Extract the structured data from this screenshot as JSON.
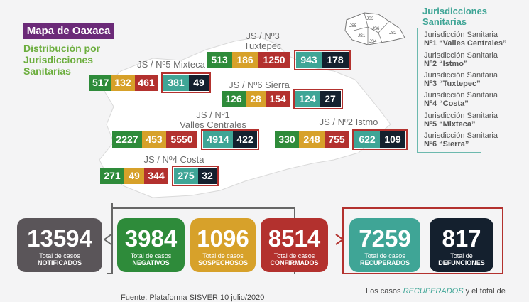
{
  "title": "Mapa de Oaxaca",
  "subtitle": "Distribución por Jurisdicciones Sanitarias",
  "legend": {
    "title": "Jurisdicciones Sanitarias",
    "items": [
      {
        "prefix": "Jurisdicción Sanitaria",
        "name": "Nº1 “Valles Centrales”"
      },
      {
        "prefix": "Jurisdicción Sanitaria",
        "name": "Nº2 “Istmo”"
      },
      {
        "prefix": "Jurisdicción Sanitaria",
        "name": "Nº3 “Tuxtepec”"
      },
      {
        "prefix": "Jurisdicción Sanitaria",
        "name": "Nº4 “Costa”"
      },
      {
        "prefix": "Jurisdicción Sanitaria",
        "name": "Nº5 “Mixteca”"
      },
      {
        "prefix": "Jurisdicción Sanitaria",
        "name": "Nº6 “Sierra”"
      }
    ],
    "mini_map_labels": [
      "JS3",
      "JS5",
      "JS1",
      "JS6",
      "JS2",
      "JS4"
    ]
  },
  "colors": {
    "negativos": "#2e8b3a",
    "sospechosos": "#d7a12a",
    "confirmados": "#b3312e",
    "recuperados": "#3fa596",
    "defunciones": "#14202e",
    "notificados": "#5a5559",
    "title_bg": "#6b2a78",
    "accent_green": "#6cae3e"
  },
  "chart_data": {
    "type": "table",
    "columns": [
      "Negativos",
      "Sospechosos",
      "Confirmados",
      "Recuperados",
      "Defunciones"
    ],
    "regions": [
      {
        "label_top": "JS / Nº3",
        "label_bottom": "Tuxtepec",
        "values": [
          513,
          186,
          1250,
          943,
          178
        ]
      },
      {
        "label_top": "JS / Nº5 Mixteca",
        "label_bottom": "",
        "values": [
          517,
          132,
          461,
          381,
          49
        ]
      },
      {
        "label_top": "JS / Nº6 Sierra",
        "label_bottom": "",
        "values": [
          126,
          28,
          154,
          124,
          27
        ]
      },
      {
        "label_top": "JS / Nº1",
        "label_bottom": "Valles Centrales",
        "values": [
          2227,
          453,
          5550,
          4914,
          422
        ]
      },
      {
        "label_top": "JS / Nº2 Istmo",
        "label_bottom": "",
        "values": [
          330,
          248,
          755,
          622,
          109
        ]
      },
      {
        "label_top": "JS / Nº4 Costa",
        "label_bottom": "",
        "values": [
          271,
          49,
          344,
          275,
          32
        ]
      }
    ],
    "totals": [
      {
        "value": "13594",
        "line1": "Total de casos",
        "line2": "NOTIFICADOS"
      },
      {
        "value": "3984",
        "line1": "Total de casos",
        "line2": "NEGATIVOS"
      },
      {
        "value": "1096",
        "line1": "Total de casos",
        "line2": "SOSPECHOSOS"
      },
      {
        "value": "8514",
        "line1": "Total de casos",
        "line2": "CONFIRMADOS"
      },
      {
        "value": "7259",
        "line1": "Total de casos",
        "line2": "RECUPERADOS"
      },
      {
        "value": "817",
        "line1": "Total de",
        "line2": "DEFUNCIONES"
      }
    ]
  },
  "footer": {
    "source": "Fuente: Plataforma SISVER 10 julio/2020",
    "note_prefix": "Los casos",
    "note_em": "RECUPERADOS",
    "note_suffix": "y el total de"
  }
}
